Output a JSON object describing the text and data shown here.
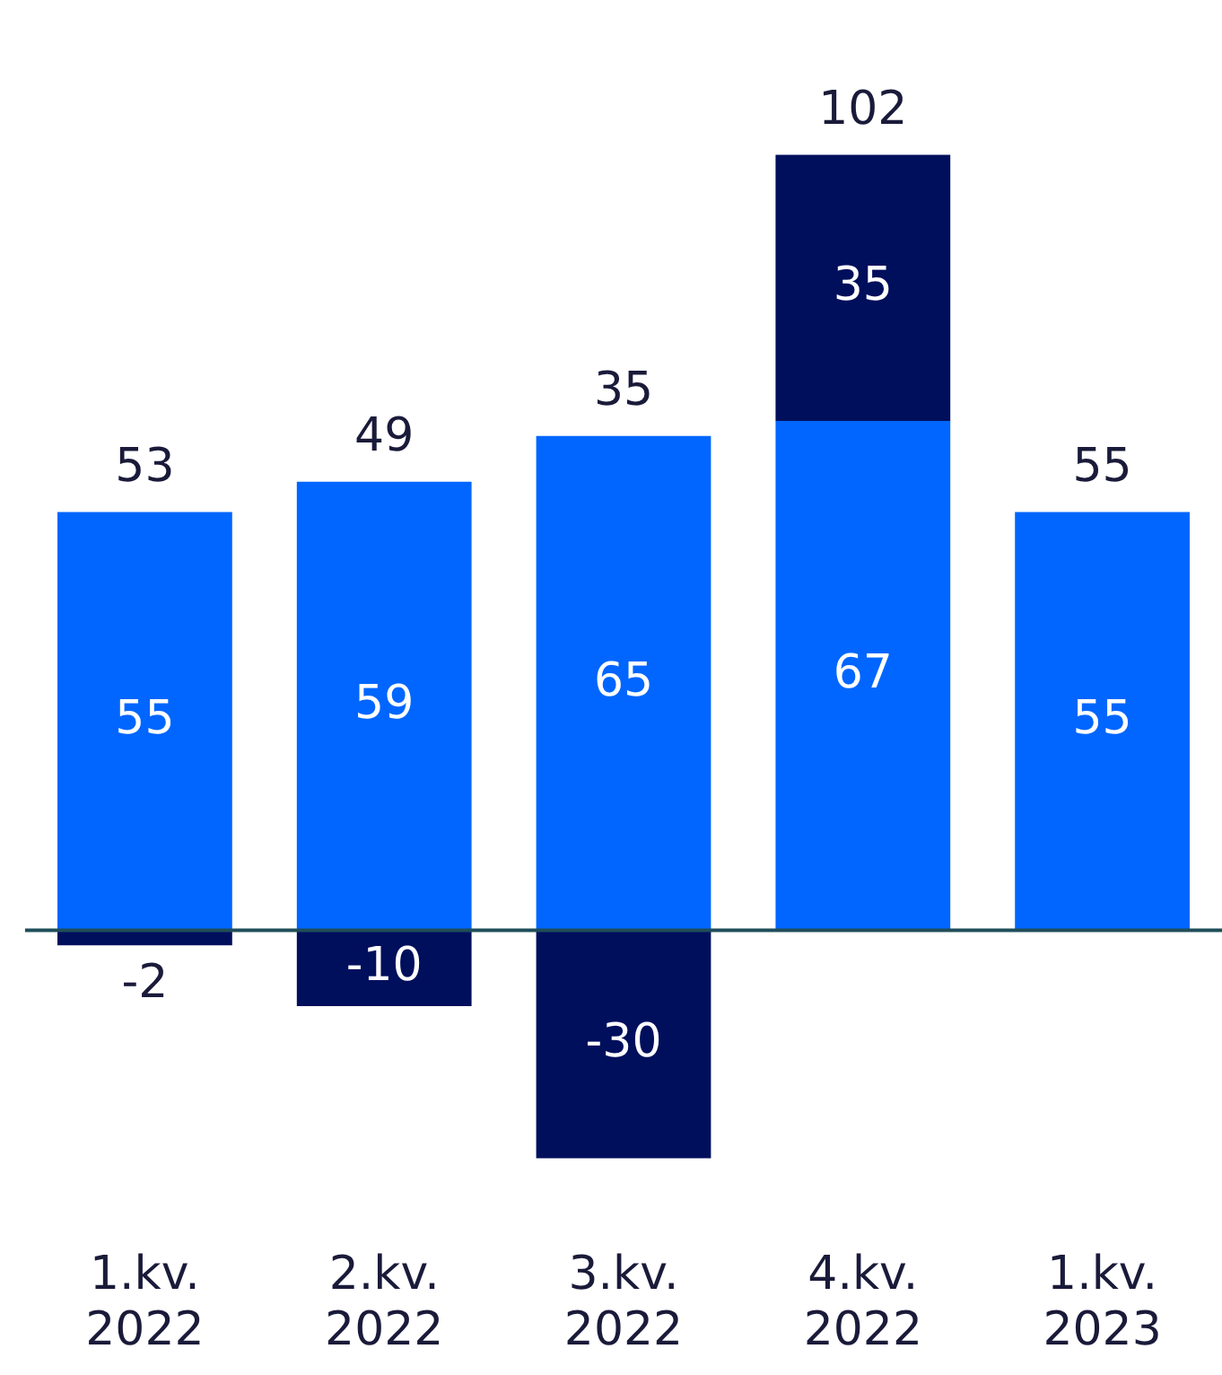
{
  "chart_data": {
    "type": "bar",
    "stacked": true,
    "categories": [
      "1.kv. 2022",
      "2.kv. 2022",
      "3.kv. 2022",
      "4.kv. 2022",
      "1.kv. 2023"
    ],
    "series": [
      {
        "color": "#0066ff",
        "values": [
          55,
          59,
          65,
          67,
          55
        ]
      },
      {
        "color": "#000f5c",
        "values": [
          -2,
          -10,
          -30,
          35,
          null
        ]
      }
    ],
    "tick_labels": "x",
    "data_labels": true,
    "totals": [
      "53",
      "49",
      "35",
      "102",
      "55"
    ],
    "ref_lines": [
      {
        "axis": "y",
        "value": 0,
        "color": "#1f4e5a"
      }
    ],
    "grid": false,
    "legend": false
  }
}
